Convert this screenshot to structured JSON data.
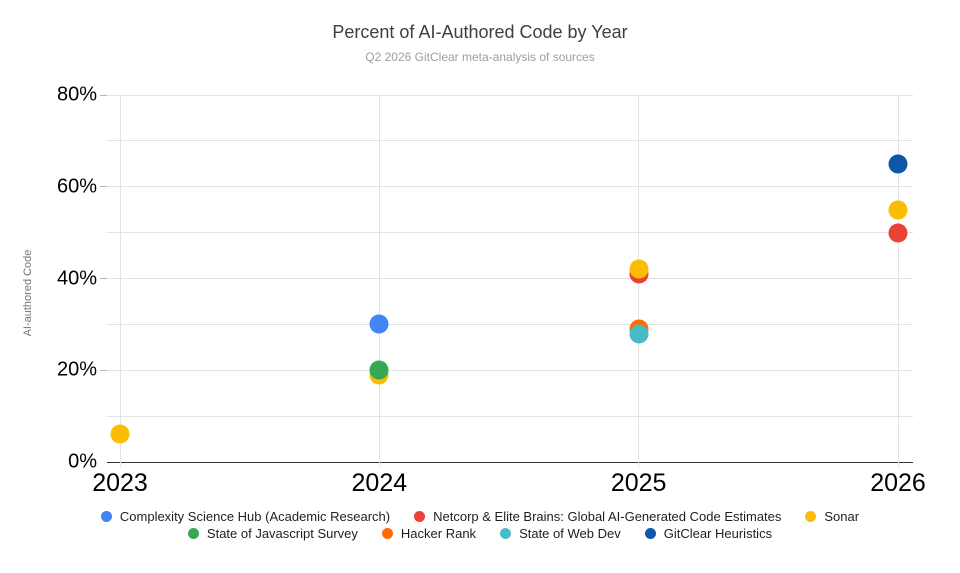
{
  "header": {
    "title": "Percent of AI-Authored Code by Year",
    "subtitle": "Q2 2026 GitClear meta-analysis of sources"
  },
  "chart_data": {
    "type": "scatter",
    "title": "Percent of AI-Authored Code by Year",
    "subtitle": "Q2 2026 GitClear meta-analysis of sources",
    "xlabel": "",
    "ylabel": "AI-authored Code",
    "x_categories": [
      "2023",
      "2024",
      "2025",
      "2026"
    ],
    "ylim": [
      0,
      80
    ],
    "y_unit": "%",
    "y_grid_step": 10,
    "y_labeled_ticks": [
      0,
      20,
      40,
      60,
      80
    ],
    "y_tick_labels": [
      "0%",
      "20%",
      "40%",
      "60%",
      "80%"
    ],
    "grid": true,
    "legend_position": "bottom",
    "series": [
      {
        "name": "Complexity Science Hub (Academic Research)",
        "color": "#4285F4",
        "points": [
          {
            "x": "2024",
            "y": 30
          }
        ]
      },
      {
        "name": "Netcorp & Elite Brains: Global AI-Generated Code Estimates",
        "color": "#EA4335",
        "points": [
          {
            "x": "2025",
            "y": 41
          },
          {
            "x": "2026",
            "y": 50
          }
        ]
      },
      {
        "name": "Sonar",
        "color": "#FBBC04",
        "points": [
          {
            "x": "2023",
            "y": 6
          },
          {
            "x": "2024",
            "y": 19
          },
          {
            "x": "2025",
            "y": 42
          },
          {
            "x": "2026",
            "y": 55
          }
        ]
      },
      {
        "name": "State of Javascript Survey",
        "color": "#34A853",
        "points": [
          {
            "x": "2024",
            "y": 20
          }
        ]
      },
      {
        "name": "Hacker Rank",
        "color": "#FF6D01",
        "points": [
          {
            "x": "2025",
            "y": 29
          }
        ]
      },
      {
        "name": "State of Web Dev",
        "color": "#46BDC6",
        "points": [
          {
            "x": "2025",
            "y": 28
          }
        ]
      },
      {
        "name": "GitClear Heuristics",
        "color": "#0E57A8",
        "points": [
          {
            "x": "2026",
            "y": 65
          }
        ]
      }
    ],
    "legend_rows": [
      [
        0,
        1,
        2
      ],
      [
        3,
        4,
        5,
        6
      ]
    ]
  }
}
